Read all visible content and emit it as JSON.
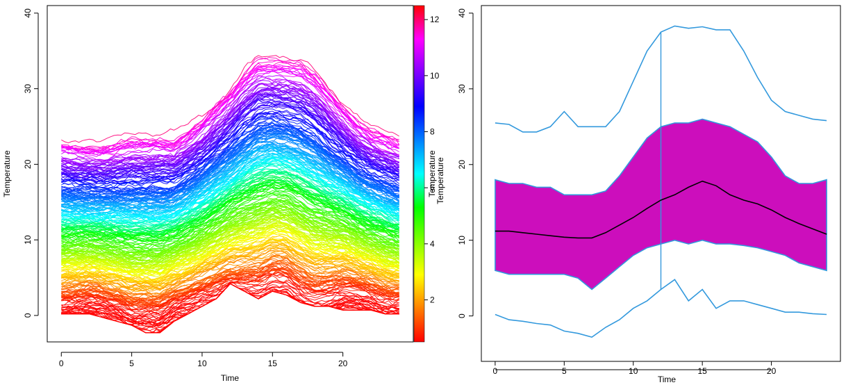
{
  "chart_data": [
    {
      "type": "line",
      "title": "",
      "xlabel": "Time",
      "ylabel": "Temperature",
      "xlim": [
        -1,
        25
      ],
      "ylim": [
        -3.5,
        41
      ],
      "x_ticks": [
        0,
        5,
        10,
        15,
        20
      ],
      "y_ticks": [
        0,
        10,
        20,
        30,
        40
      ],
      "grid": false,
      "colorbar": {
        "range": [
          0.5,
          12.5
        ],
        "ticks": [
          2,
          4,
          6,
          8,
          10,
          12
        ],
        "palette": [
          "#ff0000",
          "#ff8000",
          "#ffff00",
          "#80ff00",
          "#00ff00",
          "#00ffff",
          "#0080ff",
          "#0000ff",
          "#8000ff",
          "#ff00ff",
          "#ff0000"
        ],
        "label": "Temperature"
      },
      "series_summary": {
        "count": "many",
        "x": [
          0,
          1,
          2,
          3,
          4,
          5,
          6,
          7,
          8,
          9,
          10,
          11,
          12,
          13,
          14,
          15,
          16,
          17,
          18,
          19,
          20,
          21,
          22,
          23,
          24
        ],
        "upper_envelope": [
          25.5,
          25,
          24.5,
          24.5,
          25,
          26,
          25,
          25,
          25,
          27,
          29,
          31.5,
          35,
          37,
          38,
          38,
          37.5,
          37.5,
          36.5,
          33.5,
          30,
          28,
          27,
          26.5,
          25.5
        ],
        "median": [
          11,
          11,
          11,
          10.8,
          10.7,
          10.5,
          10.5,
          10.5,
          11,
          11.8,
          12.8,
          14,
          15.2,
          16.2,
          17,
          17.5,
          17.3,
          16.5,
          15.5,
          14.7,
          14,
          13,
          12.2,
          11.5,
          11
        ],
        "lower_envelope": [
          0,
          0,
          0,
          -0.5,
          -1,
          -1.5,
          -2.5,
          -2.5,
          -1,
          0,
          1,
          2,
          4,
          3,
          2,
          3,
          2.5,
          1.5,
          1,
          1,
          0.5,
          0.5,
          0.5,
          0,
          0
        ]
      }
    },
    {
      "type": "area",
      "title": "",
      "xlabel": "Time",
      "ylabel": "Temperature",
      "xlim": [
        -1,
        25
      ],
      "ylim": [
        -6,
        41
      ],
      "x_ticks": [
        0,
        5,
        10,
        15,
        20
      ],
      "y_ticks": [
        0,
        10,
        20,
        30,
        40
      ],
      "grid": false,
      "x": [
        0,
        1,
        2,
        3,
        4,
        5,
        6,
        7,
        8,
        9,
        10,
        11,
        12,
        13,
        14,
        15,
        16,
        17,
        18,
        19,
        20,
        21,
        22,
        23,
        24
      ],
      "series": [
        {
          "role": "upper_whisker",
          "values": [
            25.5,
            25.3,
            24.3,
            24.3,
            25,
            27,
            25,
            25,
            25,
            27,
            31,
            35,
            37.5,
            38.3,
            38,
            38.2,
            37.8,
            37.8,
            35,
            31.5,
            28.5,
            27,
            26.5,
            26,
            25.8
          ]
        },
        {
          "role": "band_upper",
          "values": [
            18,
            17.5,
            17.5,
            17,
            17,
            16,
            16,
            16,
            16.5,
            18.5,
            21,
            23.5,
            25,
            25.5,
            25.5,
            26,
            25.5,
            25,
            24,
            23,
            21,
            18.5,
            17.5,
            17.5,
            18
          ]
        },
        {
          "role": "median",
          "values": [
            11.2,
            11.2,
            11,
            10.8,
            10.6,
            10.4,
            10.3,
            10.3,
            11,
            12,
            13,
            14.2,
            15.3,
            16,
            17,
            17.8,
            17.2,
            16,
            15.3,
            14.8,
            14,
            13,
            12.2,
            11.5,
            10.8
          ]
        },
        {
          "role": "band_lower",
          "values": [
            6,
            5.5,
            5.5,
            5.5,
            5.5,
            5.5,
            5,
            3.5,
            5,
            6.5,
            8,
            9,
            9.5,
            10,
            9.5,
            10,
            9.5,
            9.5,
            9.3,
            9,
            8.5,
            8,
            7,
            6.5,
            6
          ]
        },
        {
          "role": "lower_whisker",
          "values": [
            0.2,
            -0.5,
            -0.7,
            -1,
            -1.2,
            -2,
            -2.3,
            -2.8,
            -1.5,
            -0.5,
            1,
            2,
            3.5,
            4.8,
            2,
            3.5,
            1,
            2,
            2,
            1.5,
            1,
            0.5,
            0.5,
            0.3,
            0.2
          ]
        }
      ],
      "vline_x": 12,
      "colors": {
        "band": "#cc0ebc",
        "whisker": "#3399dd",
        "median": "#000000"
      }
    }
  ]
}
